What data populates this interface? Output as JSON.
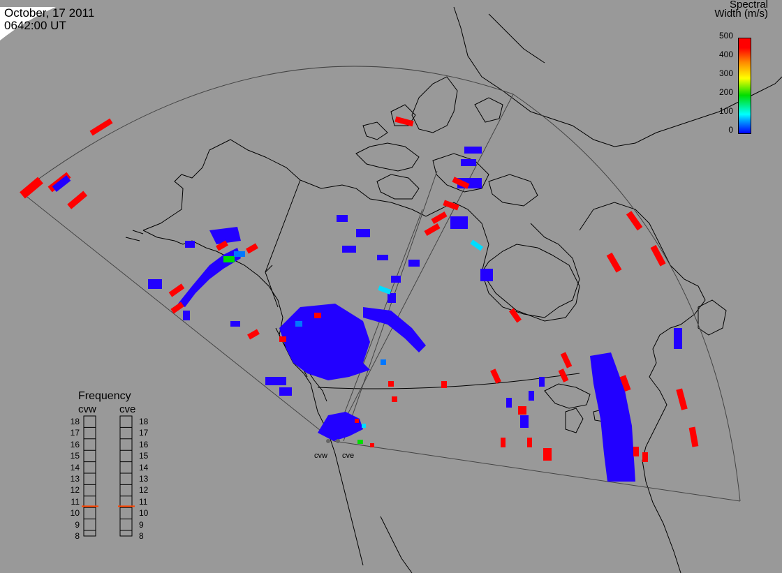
{
  "header": {
    "date": "October, 17 2011",
    "time": "0642:00 UT"
  },
  "colorbar": {
    "title_line1": "Spectral",
    "title_line2": "Width (m/s)",
    "ticks": [
      "500",
      "400",
      "300",
      "200",
      "100",
      "0"
    ],
    "colors": {
      "low": "#0000ff",
      "mid": "#00dd00",
      "high": "#ff0000"
    }
  },
  "stations": {
    "west": "cvw",
    "east": "cve"
  },
  "frequency": {
    "title": "Frequency",
    "left_label": "cvw",
    "right_label": "cve",
    "scale": [
      "18",
      "17",
      "16",
      "15",
      "14",
      "13",
      "12",
      "11",
      "10",
      "9",
      "8"
    ],
    "cvw_mhz": 10.6,
    "cve_mhz": 10.6,
    "marker_color": "#ff4400"
  },
  "map": {
    "background": "#999999",
    "data_colors": {
      "blue": "#2200ff",
      "red": "#ff0000",
      "cyan": "#00ddff",
      "green": "#00dd00",
      "azure": "#0077ff"
    }
  }
}
